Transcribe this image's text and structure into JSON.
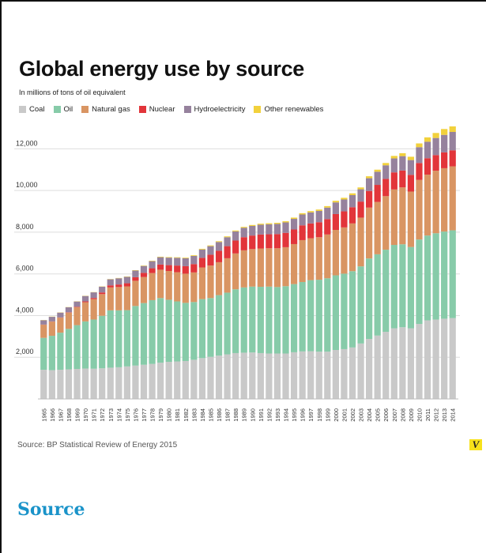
{
  "page": {
    "source_note": "Source: BP Statistical Review of Energy 2015",
    "logo_text": "V",
    "source_link": "Source"
  },
  "chart_data": {
    "type": "bar",
    "stacked": true,
    "title": "Global energy use by source",
    "subtitle": "In millions of tons of oil equivalent",
    "legend_position": "top-left",
    "ylim": [
      0,
      13000
    ],
    "yticks": [
      2000,
      4000,
      6000,
      8000,
      10000,
      12000
    ],
    "ytick_labels": [
      "2,000",
      "4,000",
      "6,000",
      "8,000",
      "10,000",
      "12,000"
    ],
    "grid": true,
    "categories": [
      "1965",
      "1966",
      "1967",
      "1968",
      "1969",
      "1970",
      "1971",
      "1972",
      "1973",
      "1974",
      "1975",
      "1976",
      "1977",
      "1978",
      "1979",
      "1980",
      "1981",
      "1982",
      "1983",
      "1984",
      "1985",
      "1986",
      "1987",
      "1988",
      "1989",
      "1990",
      "1991",
      "1992",
      "1993",
      "1994",
      "1995",
      "1996",
      "1997",
      "1998",
      "1999",
      "2000",
      "2001",
      "2002",
      "2003",
      "2004",
      "2005",
      "2006",
      "2007",
      "2008",
      "2009",
      "2010",
      "2011",
      "2012",
      "2013",
      "2014"
    ],
    "series": [
      {
        "name": "Coal",
        "color": "#c9c9c9",
        "values": [
          1400,
          1380,
          1400,
          1420,
          1440,
          1460,
          1450,
          1470,
          1500,
          1520,
          1560,
          1600,
          1640,
          1680,
          1740,
          1780,
          1800,
          1820,
          1880,
          1960,
          2020,
          2080,
          2140,
          2200,
          2220,
          2230,
          2200,
          2180,
          2180,
          2180,
          2240,
          2280,
          2290,
          2270,
          2270,
          2350,
          2390,
          2470,
          2660,
          2880,
          3040,
          3220,
          3390,
          3440,
          3390,
          3600,
          3770,
          3810,
          3850,
          3880
        ]
      },
      {
        "name": "Oil",
        "color": "#87cba9",
        "values": [
          1530,
          1650,
          1780,
          1940,
          2100,
          2260,
          2360,
          2520,
          2750,
          2730,
          2700,
          2860,
          2960,
          3060,
          3100,
          2980,
          2880,
          2790,
          2770,
          2830,
          2820,
          2900,
          2960,
          3060,
          3130,
          3160,
          3180,
          3210,
          3190,
          3230,
          3270,
          3330,
          3410,
          3450,
          3520,
          3580,
          3620,
          3660,
          3700,
          3860,
          3900,
          3940,
          4000,
          3980,
          3900,
          4050,
          4070,
          4140,
          4180,
          4210
        ]
      },
      {
        "name": "Natural gas",
        "color": "#d99563",
        "values": [
          630,
          680,
          720,
          780,
          860,
          920,
          980,
          1040,
          1100,
          1120,
          1140,
          1210,
          1250,
          1300,
          1360,
          1380,
          1400,
          1400,
          1420,
          1520,
          1560,
          1580,
          1650,
          1720,
          1780,
          1800,
          1840,
          1840,
          1860,
          1870,
          1920,
          2010,
          2010,
          2040,
          2100,
          2180,
          2220,
          2290,
          2340,
          2440,
          2510,
          2570,
          2660,
          2730,
          2660,
          2860,
          2920,
          3000,
          3040,
          3070
        ]
      },
      {
        "name": "Nuclear",
        "color": "#e2353a",
        "values": [
          8,
          10,
          13,
          18,
          25,
          40,
          55,
          78,
          100,
          120,
          150,
          170,
          200,
          230,
          250,
          280,
          320,
          360,
          400,
          460,
          520,
          550,
          580,
          620,
          630,
          650,
          670,
          670,
          680,
          690,
          700,
          710,
          710,
          720,
          740,
          760,
          770,
          780,
          770,
          800,
          820,
          830,
          820,
          810,
          800,
          810,
          790,
          750,
          760,
          770
        ]
      },
      {
        "name": "Hydroelectricity",
        "color": "#96829d",
        "values": [
          210,
          220,
          230,
          240,
          250,
          260,
          270,
          280,
          290,
          300,
          310,
          320,
          330,
          340,
          350,
          360,
          370,
          380,
          390,
          400,
          410,
          420,
          430,
          440,
          450,
          460,
          470,
          480,
          490,
          500,
          510,
          520,
          530,
          540,
          550,
          560,
          570,
          580,
          590,
          610,
          630,
          650,
          670,
          690,
          710,
          760,
          790,
          820,
          840,
          880
        ]
      },
      {
        "name": "Other renewables",
        "color": "#f2d13c",
        "values": [
          10,
          10,
          10,
          10,
          10,
          10,
          10,
          12,
          12,
          14,
          16,
          18,
          20,
          22,
          24,
          26,
          28,
          30,
          32,
          34,
          36,
          38,
          40,
          42,
          44,
          46,
          48,
          50,
          52,
          56,
          60,
          62,
          64,
          68,
          72,
          76,
          80,
          84,
          88,
          94,
          100,
          110,
          120,
          140,
          160,
          180,
          210,
          240,
          280,
          320
        ]
      }
    ]
  }
}
